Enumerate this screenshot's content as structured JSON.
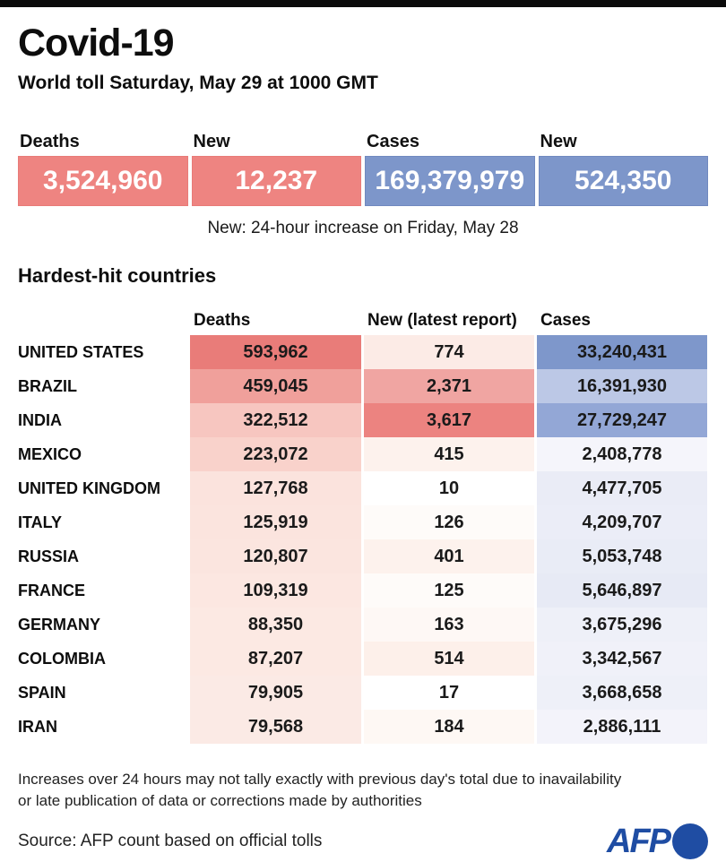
{
  "header": {
    "title": "Covid-19",
    "subtitle": "World toll Saturday, May 29 at 1000 GMT"
  },
  "summary": {
    "items": [
      {
        "label": "Deaths",
        "value": "3,524,960",
        "color": "#EE8481",
        "border": "#E87B78"
      },
      {
        "label": "New",
        "value": "12,237",
        "color": "#EE8481",
        "border": "#E87B78"
      },
      {
        "label": "Cases",
        "value": "169,379,979",
        "color": "#7D96CA",
        "border": "#7089BF"
      },
      {
        "label": "New",
        "value": "524,350",
        "color": "#7D96CA",
        "border": "#7089BF"
      }
    ],
    "note": "New: 24-hour increase on Friday, May 28"
  },
  "table": {
    "section_title": "Hardest-hit countries",
    "columns": [
      "Deaths",
      "New (latest report)",
      "Cases"
    ],
    "rows": [
      {
        "country": "UNITED STATES",
        "deaths": "593,962",
        "new": "774",
        "cases": "33,240,431",
        "deaths_bg": "#E97C79",
        "new_bg": "#FCEBE6",
        "cases_bg": "#7E97CB"
      },
      {
        "country": "BRAZIL",
        "deaths": "459,045",
        "new": "2,371",
        "cases": "16,391,930",
        "deaths_bg": "#F0A09B",
        "new_bg": "#F0A5A2",
        "cases_bg": "#BCC8E6"
      },
      {
        "country": "INDIA",
        "deaths": "322,512",
        "new": "3,617",
        "cases": "27,729,247",
        "deaths_bg": "#F7C6C0",
        "new_bg": "#EC8380",
        "cases_bg": "#93A7D6"
      },
      {
        "country": "MEXICO",
        "deaths": "223,072",
        "new": "415",
        "cases": "2,408,778",
        "deaths_bg": "#F9D2CB",
        "new_bg": "#FDF2ED",
        "cases_bg": "#F5F5FB"
      },
      {
        "country": "UNITED KINGDOM",
        "deaths": "127,768",
        "new": "10",
        "cases": "4,477,705",
        "deaths_bg": "#FBE3DD",
        "new_bg": "#FFFFFF",
        "cases_bg": "#EAECF6"
      },
      {
        "country": "ITALY",
        "deaths": "125,919",
        "new": "126",
        "cases": "4,209,707",
        "deaths_bg": "#FBE4DE",
        "new_bg": "#FEFBF9",
        "cases_bg": "#EBEDF7"
      },
      {
        "country": "RUSSIA",
        "deaths": "120,807",
        "new": "401",
        "cases": "5,053,748",
        "deaths_bg": "#FBE5DF",
        "new_bg": "#FDF2ED",
        "cases_bg": "#E9ECF6"
      },
      {
        "country": "FRANCE",
        "deaths": "109,319",
        "new": "125",
        "cases": "5,646,897",
        "deaths_bg": "#FCE7E1",
        "new_bg": "#FEFBF9",
        "cases_bg": "#E7EAF5"
      },
      {
        "country": "GERMANY",
        "deaths": "88,350",
        "new": "163",
        "cases": "3,675,296",
        "deaths_bg": "#FCE9E3",
        "new_bg": "#FEF8F5",
        "cases_bg": "#EEF0F8"
      },
      {
        "country": "COLOMBIA",
        "deaths": "87,207",
        "new": "514",
        "cases": "3,342,567",
        "deaths_bg": "#FCE9E3",
        "new_bg": "#FDF0EA",
        "cases_bg": "#F0F1F9"
      },
      {
        "country": "SPAIN",
        "deaths": "79,905",
        "new": "17",
        "cases": "3,668,658",
        "deaths_bg": "#FBEAE5",
        "new_bg": "#FFFFFF",
        "cases_bg": "#EEF0F8"
      },
      {
        "country": "IRAN",
        "deaths": "79,568",
        "new": "184",
        "cases": "2,886,111",
        "deaths_bg": "#FBEAE5",
        "new_bg": "#FEF8F4",
        "cases_bg": "#F3F3FA"
      }
    ]
  },
  "footnote": {
    "line1": "Increases over 24 hours may not tally exactly with previous day's total due to inavailability",
    "line2": "or late publication of data or corrections made by authorities"
  },
  "footer": {
    "source": "Source: AFP count based on official tolls",
    "logo_text": "AFP",
    "logo_color": "#1F4DA3"
  },
  "chart_data": {
    "type": "table",
    "title": "Covid-19 — World toll Saturday, May 29 at 1000 GMT",
    "world_totals": {
      "deaths": 3524960,
      "new_deaths": 12237,
      "cases": 169379979,
      "new_cases": 524350
    },
    "new_definition": "24-hour increase on Friday, May 28",
    "categories": [
      "UNITED STATES",
      "BRAZIL",
      "INDIA",
      "MEXICO",
      "UNITED KINGDOM",
      "ITALY",
      "RUSSIA",
      "FRANCE",
      "GERMANY",
      "COLOMBIA",
      "SPAIN",
      "IRAN"
    ],
    "series": [
      {
        "name": "Deaths",
        "values": [
          593962,
          459045,
          322512,
          223072,
          127768,
          125919,
          120807,
          109319,
          88350,
          87207,
          79905,
          79568
        ]
      },
      {
        "name": "New (latest report)",
        "values": [
          774,
          2371,
          3617,
          415,
          10,
          126,
          401,
          125,
          163,
          514,
          17,
          184
        ]
      },
      {
        "name": "Cases",
        "values": [
          33240431,
          16391930,
          27729247,
          2408778,
          4477705,
          4209707,
          5053748,
          5646897,
          3675296,
          3342567,
          3668658,
          2886111
        ]
      }
    ],
    "layout_hints": {
      "heatmap": "red scale on Deaths and New columns, blue scale on Cases column; darker = higher value",
      "red_max": "#E97C79",
      "blue_max": "#7E97CB"
    }
  }
}
